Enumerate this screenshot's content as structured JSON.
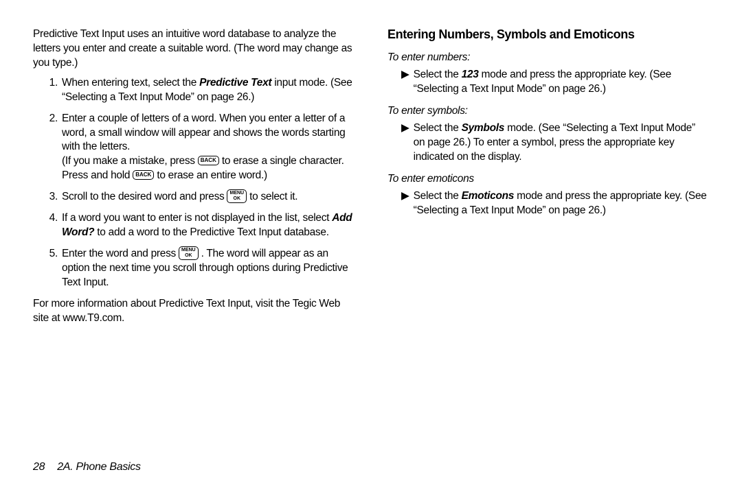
{
  "left": {
    "intro": "Predictive Text Input uses an intuitive word database to analyze the letters you enter and create a suitable word. (The word may change as you type.)",
    "step1_a": "When entering text, select the ",
    "step1_bi": "Predictive Text",
    "step1_b": " input mode. (See “Selecting a Text Input Mode” on page 26.)",
    "step2_a": "Enter a couple of letters of a word. When you enter a letter of a word, a small window will appear and shows the words starting with the letters.",
    "step2_b1": "(If you make a mistake, press ",
    "step2_b2": " to erase a single character. Press and hold ",
    "step2_b3": " to erase an entire word.)",
    "step3_a": "Scroll to the desired word and press ",
    "step3_b": " to select it.",
    "step4_a": "If a word you want to enter is not displayed in the list, select ",
    "step4_bi": "Add Word?",
    "step4_b": " to add a word to the Predictive Text Input database.",
    "step5_a": "Enter the word and press ",
    "step5_b": " . The word will appear as an option the next time you scroll through options during Predictive Text Input.",
    "outro": "For more information about Predictive Text Input, visit the Tegic Web site at www.T9.com.",
    "key_back": "BACK",
    "key_menu_top": "MENU",
    "key_menu_bot": "OK"
  },
  "right": {
    "heading": "Entering Numbers, Symbols and Emoticons",
    "sub1": "To enter numbers:",
    "b1_a": "Select the ",
    "b1_bi": "123",
    "b1_b": " mode and press the appropriate key. (See “Selecting a Text Input Mode” on page 26.)",
    "sub2": "To enter symbols:",
    "b2_a": "Select the ",
    "b2_bi": "Symbols",
    "b2_b": " mode. (See “Selecting a Text Input Mode” on page 26.) To enter a symbol, press the appropriate key indicated on the display.",
    "sub3": "To enter emoticons",
    "b3_a": "Select the ",
    "b3_bi": "Emoticons",
    "b3_b": " mode and press the appropriate key. (See “Selecting a Text Input Mode” on page 26.)"
  },
  "footer": {
    "page_num": "28",
    "section": "2A. Phone Basics"
  }
}
